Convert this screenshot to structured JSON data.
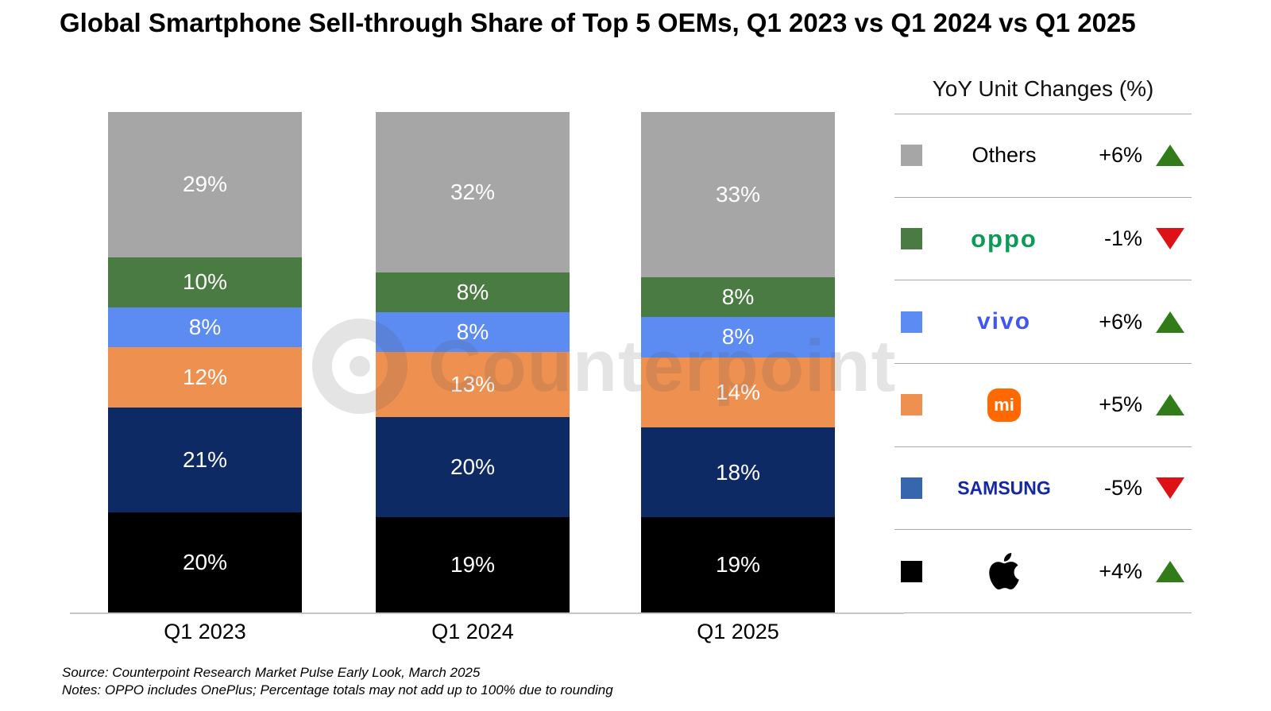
{
  "title": "Global Smartphone Sell-through Share of Top 5 OEMs, Q1 2023 vs Q1 2024 vs Q1 2025",
  "watermark": {
    "text": "Counterpoint"
  },
  "chart_data": {
    "type": "bar",
    "stacked": true,
    "title": "Global Smartphone Sell-through Share of Top 5 OEMs, Q1 2023 vs Q1 2024 vs Q1 2025",
    "unit": "%",
    "ylim": [
      0,
      100
    ],
    "grid": false,
    "legend_position": "right",
    "data_label_format": "{value}%",
    "categories": [
      "Q1 2023",
      "Q1 2024",
      "Q1 2025"
    ],
    "series": [
      {
        "name": "Apple",
        "color": "#000000",
        "values": [
          20,
          19,
          19
        ]
      },
      {
        "name": "Samsung",
        "color": "#0e2a64",
        "values": [
          21,
          20,
          18
        ]
      },
      {
        "name": "Xiaomi",
        "color": "#ed9050",
        "values": [
          12,
          13,
          14
        ]
      },
      {
        "name": "vivo",
        "color": "#5c8bf2",
        "values": [
          8,
          8,
          8
        ]
      },
      {
        "name": "OPPO",
        "color": "#4a7b42",
        "values": [
          10,
          8,
          8
        ]
      },
      {
        "name": "Others",
        "color": "#a6a6a6",
        "values": [
          29,
          32,
          33
        ]
      }
    ]
  },
  "legend": {
    "title": "YoY Unit Changes (%)",
    "up_color": "#317c18",
    "down_color": "#dd1217",
    "rows": [
      {
        "brand": "Others",
        "logo": "text",
        "swatch": "#a6a6a6",
        "change": "+6%",
        "direction": "up"
      },
      {
        "brand": "OPPO",
        "logo": "oppo",
        "swatch": "#4a7b42",
        "change": "-1%",
        "direction": "down"
      },
      {
        "brand": "vivo",
        "logo": "vivo",
        "swatch": "#5c8bf2",
        "change": "+6%",
        "direction": "up"
      },
      {
        "brand": "Xiaomi",
        "logo": "mi",
        "swatch": "#ed9050",
        "change": "+5%",
        "direction": "up"
      },
      {
        "brand": "Samsung",
        "logo": "samsung",
        "swatch": "#3765ae",
        "change": "-5%",
        "direction": "down"
      },
      {
        "brand": "Apple",
        "logo": "apple",
        "swatch": "#000000",
        "change": "+4%",
        "direction": "up"
      }
    ],
    "logo_texts": {
      "oppo": "oppo",
      "vivo": "vivo",
      "samsung": "SAMSUNG",
      "mi": "mi"
    }
  },
  "footer": {
    "source": "Source: Counterpoint Research Market Pulse Early Look, March 2025",
    "notes": "Notes: OPPO includes OnePlus; Percentage totals may not add up to 100% due to rounding"
  }
}
